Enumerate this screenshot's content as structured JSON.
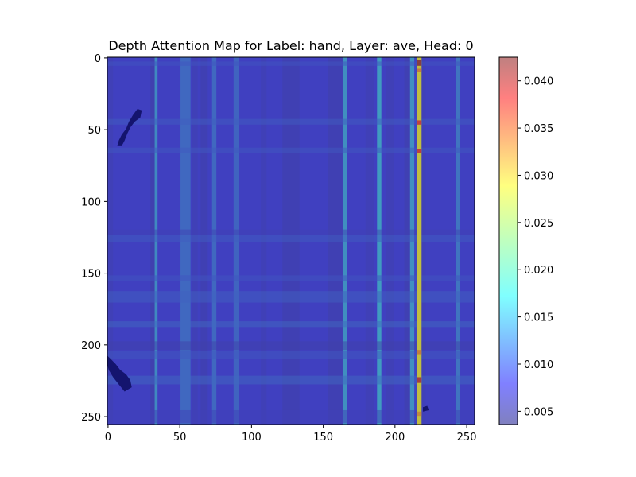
{
  "chart_data": {
    "type": "heatmap",
    "title": "Depth Attention Map for Label: hand, Layer: ave, Head: 0",
    "xlabel": "",
    "ylabel": "",
    "xlim": [
      0,
      255
    ],
    "ylim": [
      255,
      0
    ],
    "grid": false,
    "x_ticks": [
      0,
      50,
      100,
      150,
      200,
      250
    ],
    "y_ticks": [
      0,
      50,
      100,
      150,
      200,
      250
    ],
    "colorbar": {
      "colormap": "jet",
      "alpha": 0.5,
      "range": [
        0.0036,
        0.0425
      ],
      "ticks": [
        0.005,
        0.01,
        0.015,
        0.02,
        0.025,
        0.03,
        0.035,
        0.04
      ],
      "tick_labels": [
        "0.005",
        "0.010",
        "0.015",
        "0.020",
        "0.025",
        "0.030",
        "0.035",
        "0.040"
      ]
    },
    "base_value": 0.0085,
    "column_bands": [
      {
        "x0": 0,
        "x1": 4,
        "value": 0.0078
      },
      {
        "x0": 30,
        "x1": 33,
        "value": 0.0072
      },
      {
        "x0": 33,
        "x1": 35,
        "value": 0.014
      },
      {
        "x0": 51,
        "x1": 58,
        "value": 0.0115
      },
      {
        "x0": 59,
        "x1": 63,
        "value": 0.0078
      },
      {
        "x0": 65,
        "x1": 70,
        "value": 0.0075
      },
      {
        "x0": 73,
        "x1": 76,
        "value": 0.0115
      },
      {
        "x0": 88,
        "x1": 92,
        "value": 0.0112
      },
      {
        "x0": 107,
        "x1": 111,
        "value": 0.0078
      },
      {
        "x0": 122,
        "x1": 134,
        "value": 0.0075
      },
      {
        "x0": 154,
        "x1": 164,
        "value": 0.0075
      },
      {
        "x0": 164,
        "x1": 167,
        "value": 0.0145
      },
      {
        "x0": 180,
        "x1": 186,
        "value": 0.0078
      },
      {
        "x0": 188,
        "x1": 191,
        "value": 0.0155
      },
      {
        "x0": 194,
        "x1": 200,
        "value": 0.0078
      },
      {
        "x0": 207,
        "x1": 211,
        "value": 0.0075
      },
      {
        "x0": 211,
        "x1": 214,
        "value": 0.0145
      },
      {
        "x0": 214,
        "x1": 216,
        "value": 0.009
      },
      {
        "x0": 216,
        "x1": 219,
        "value": 0.028
      },
      {
        "x0": 219,
        "x1": 222,
        "value": 0.008
      },
      {
        "x0": 243,
        "x1": 246,
        "value": 0.0125
      }
    ],
    "row_bands": [
      {
        "y0": 3,
        "y1": 6,
        "value": 0.01
      },
      {
        "y0": 43,
        "y1": 47,
        "value": 0.0105
      },
      {
        "y0": 63,
        "y1": 67,
        "value": 0.0102
      },
      {
        "y0": 120,
        "y1": 124,
        "value": 0.0075
      },
      {
        "y0": 124,
        "y1": 129,
        "value": 0.0105
      },
      {
        "y0": 152,
        "y1": 156,
        "value": 0.01
      },
      {
        "y0": 163,
        "y1": 171,
        "value": 0.0108
      },
      {
        "y0": 184,
        "y1": 188,
        "value": 0.0115
      },
      {
        "y0": 198,
        "y1": 204,
        "value": 0.0068
      },
      {
        "y0": 205,
        "y1": 210,
        "value": 0.0102
      },
      {
        "y0": 222,
        "y1": 228,
        "value": 0.0115
      },
      {
        "y0": 246,
        "y1": 255,
        "value": 0.0078
      }
    ],
    "hotspots": [
      {
        "x": 216,
        "y": 2,
        "w": 3,
        "h": 4,
        "value": 0.042
      },
      {
        "x": 216,
        "y": 8,
        "w": 3,
        "h": 2,
        "value": 0.033
      },
      {
        "x": 216,
        "y": 44,
        "w": 3,
        "h": 3,
        "value": 0.0375
      },
      {
        "x": 216,
        "y": 64,
        "w": 3,
        "h": 3,
        "value": 0.038
      },
      {
        "x": 216,
        "y": 204,
        "w": 3,
        "h": 3,
        "value": 0.033
      },
      {
        "x": 216,
        "y": 223,
        "w": 3,
        "h": 4,
        "value": 0.04
      },
      {
        "x": 216,
        "y": 247,
        "w": 3,
        "h": 3,
        "value": 0.032
      }
    ],
    "mask_blobs": [
      {
        "points": [
          [
            21,
            36
          ],
          [
            24,
            37
          ],
          [
            23,
            42
          ],
          [
            19,
            45
          ],
          [
            16,
            49
          ],
          [
            14,
            53
          ],
          [
            12,
            58
          ],
          [
            10,
            62
          ],
          [
            7,
            62
          ],
          [
            8,
            58
          ],
          [
            10,
            54
          ],
          [
            13,
            50
          ],
          [
            15,
            45
          ],
          [
            18,
            40
          ]
        ]
      },
      {
        "points": [
          [
            0,
            208
          ],
          [
            3,
            211
          ],
          [
            6,
            214
          ],
          [
            9,
            218
          ],
          [
            13,
            221
          ],
          [
            16,
            225
          ],
          [
            17,
            230
          ],
          [
            12,
            233
          ],
          [
            8,
            228
          ],
          [
            4,
            223
          ],
          [
            1,
            218
          ],
          [
            0,
            214
          ]
        ]
      },
      {
        "points": [
          [
            220,
            244
          ],
          [
            223,
            243
          ],
          [
            224,
            246
          ],
          [
            220,
            247
          ]
        ]
      }
    ]
  }
}
